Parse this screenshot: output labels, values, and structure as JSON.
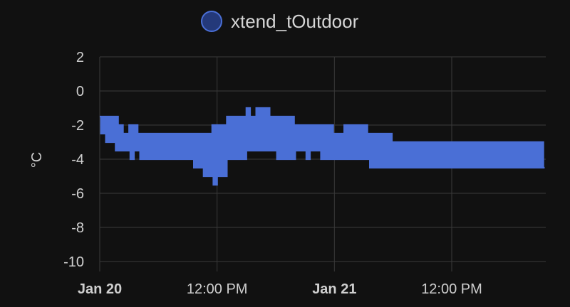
{
  "chart_data": {
    "type": "line",
    "title": "",
    "ylabel": "°C",
    "xlabel": "",
    "ylim": [
      -10,
      2
    ],
    "yticks": [
      2,
      0,
      -2,
      -4,
      -6,
      -8,
      -10
    ],
    "xlim_hours": [
      0,
      38
    ],
    "xticks": [
      {
        "label": "Jan 20",
        "bold": true,
        "hour": 0
      },
      {
        "label": "12:00 PM",
        "bold": false,
        "hour": 12
      },
      {
        "label": "Jan 21",
        "bold": true,
        "hour": 24
      },
      {
        "label": "12:00 PM",
        "bold": false,
        "hour": 36
      }
    ],
    "grid": true,
    "legend": "top-center",
    "series": [
      {
        "name": "xtend_tOutdoor",
        "color": "#4a6fd6",
        "fill": "#24397a",
        "step": true,
        "x": [
          0.0,
          0.5,
          1.0,
          1.5,
          2.0,
          2.5,
          3.0,
          3.5,
          4.0,
          4.5,
          5.0,
          5.5,
          6.0,
          6.5,
          7.0,
          7.5,
          8.0,
          8.5,
          9.0,
          9.5,
          10.0,
          10.5,
          11.0,
          11.5,
          12.0,
          12.5,
          13.0,
          13.5,
          14.0,
          14.5,
          15.0,
          15.5,
          16.0,
          16.5,
          17.0,
          17.5,
          18.0,
          18.5,
          19.0,
          19.5,
          20.0,
          20.5,
          21.0,
          21.5,
          22.0,
          22.5,
          23.0,
          23.5,
          24.0,
          24.5,
          25.0,
          25.5,
          26.0,
          26.5,
          27.0,
          27.5,
          28.0,
          28.5,
          29.0,
          29.5,
          30.0,
          30.5,
          31.0,
          31.5,
          32.0,
          32.5,
          33.0,
          33.5,
          34.0,
          34.5,
          35.0,
          35.5,
          36.0,
          36.5,
          37.0,
          37.5,
          38.0,
          38.5,
          39.0,
          39.5,
          40.0,
          40.5,
          41.0,
          41.5,
          42.0,
          42.5,
          43.0,
          43.5,
          44.0,
          44.5,
          45.0
        ],
        "y_hi": [
          -1.5,
          -1.5,
          -1.5,
          -1.5,
          -2.0,
          -2.5,
          -2.0,
          -2.0,
          -2.5,
          -2.5,
          -2.5,
          -2.5,
          -2.5,
          -2.5,
          -2.5,
          -2.5,
          -2.5,
          -2.5,
          -2.5,
          -2.5,
          -2.5,
          -2.5,
          -2.5,
          -2.0,
          -2.0,
          -2.0,
          -1.5,
          -1.5,
          -1.5,
          -1.5,
          -1.0,
          -1.5,
          -1.0,
          -1.0,
          -1.0,
          -1.5,
          -1.5,
          -1.5,
          -1.5,
          -1.5,
          -2.0,
          -2.0,
          -2.0,
          -2.0,
          -2.0,
          -2.0,
          -2.0,
          -2.0,
          -2.5,
          -2.5,
          -2.0,
          -2.0,
          -2.0,
          -2.0,
          -2.0,
          -2.5,
          -2.5,
          -2.5,
          -2.5,
          -2.5,
          -3.0,
          -3.0,
          -3.0,
          -3.0,
          -3.0,
          -3.0,
          -3.0,
          -3.0,
          -3.0,
          -3.0,
          -3.0,
          -3.0,
          -3.0,
          -3.0,
          -3.0,
          -3.0,
          -3.0,
          -3.0,
          -3.0,
          -3.0,
          -3.0,
          -3.0,
          -3.0,
          -3.0,
          -3.0,
          -3.0,
          -3.0,
          -3.0,
          -3.0,
          -3.0,
          -3.0
        ],
        "y_lo": [
          -2.5,
          -3.0,
          -3.0,
          -3.5,
          -3.5,
          -3.5,
          -4.0,
          -3.5,
          -4.0,
          -4.0,
          -4.0,
          -4.0,
          -4.0,
          -4.0,
          -4.0,
          -4.0,
          -4.0,
          -4.0,
          -4.0,
          -4.5,
          -4.5,
          -5.0,
          -5.0,
          -5.5,
          -5.0,
          -5.0,
          -4.0,
          -4.0,
          -4.0,
          -4.0,
          -3.5,
          -3.5,
          -3.5,
          -3.5,
          -3.5,
          -3.5,
          -4.0,
          -4.0,
          -4.0,
          -4.0,
          -3.5,
          -3.5,
          -4.0,
          -3.5,
          -3.5,
          -4.0,
          -4.0,
          -4.0,
          -4.0,
          -4.0,
          -4.0,
          -4.0,
          -4.0,
          -4.0,
          -4.0,
          -4.5,
          -4.5,
          -4.5,
          -4.5,
          -4.5,
          -4.5,
          -4.5,
          -4.5,
          -4.5,
          -4.5,
          -4.5,
          -4.5,
          -4.5,
          -4.5,
          -4.5,
          -4.5,
          -4.5,
          -4.5,
          -4.5,
          -4.5,
          -4.5,
          -4.5,
          -4.5,
          -4.5,
          -4.5,
          -4.5,
          -4.5,
          -4.5,
          -4.5,
          -4.5,
          -4.5,
          -4.5,
          -4.5,
          -4.5,
          -4.5,
          -4.5
        ]
      }
    ]
  }
}
